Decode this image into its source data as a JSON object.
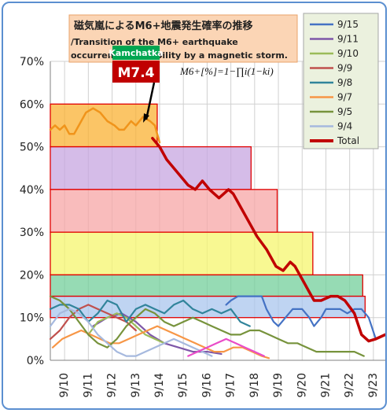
{
  "chart_data": {
    "type": "line",
    "title_jp": "磁気嵐によるM6+地震発生確率の推移",
    "title_en_line1": "/Transition of the M6+ earthquake",
    "title_en_line2": "occurrence probability by a magnetic storm.",
    "annotation": {
      "place": "Kamchatka",
      "magnitude": "M7.4"
    },
    "formula": "M6+[%]=1−∏i(1−ki)",
    "y_ticks": [
      "0%",
      "10%",
      "20%",
      "30%",
      "40%",
      "50%",
      "60%",
      "70%"
    ],
    "ylim": [
      0,
      70
    ],
    "x_dates": [
      "9/10",
      "9/11",
      "9/12",
      "9/13",
      "9/14",
      "9/15",
      "9/16",
      "9/17",
      "9/18",
      "9/19",
      "9/20",
      "9/21",
      "9/22",
      "9/23"
    ],
    "xlim": [
      9.4,
      23.5
    ],
    "grid": true,
    "legend_position": "top-right",
    "legend": [
      {
        "label": "9/15",
        "color": "#4472c4"
      },
      {
        "label": "9/11",
        "color": "#7e57a8"
      },
      {
        "label": "9/10",
        "color": "#9bbb59"
      },
      {
        "label": "9/9",
        "color": "#c0504d"
      },
      {
        "label": "9/8",
        "color": "#31849b"
      },
      {
        "label": "9/7",
        "color": "#f79646"
      },
      {
        "label": "9/5",
        "color": "#77933c"
      },
      {
        "label": "9/4",
        "color": "#a6b9de"
      },
      {
        "label": "Total",
        "color": "#c00000"
      }
    ],
    "bands": [
      {
        "x0": 9.4,
        "x1": 13.9,
        "y0": 50,
        "y1": 60,
        "color": "#f9b233"
      },
      {
        "x0": 9.4,
        "x1": 17.85,
        "y0": 40,
        "y1": 50,
        "color": "#c7a5e0"
      },
      {
        "x0": 9.4,
        "x1": 18.95,
        "y0": 30,
        "y1": 40,
        "color": "#f7a6a6"
      },
      {
        "x0": 9.4,
        "x1": 20.45,
        "y0": 20,
        "y1": 30,
        "color": "#f6f66e"
      },
      {
        "x0": 9.4,
        "x1": 22.55,
        "y0": 15,
        "y1": 20,
        "color": "#73cf9b"
      },
      {
        "x0": 9.4,
        "x1": 22.65,
        "y0": 10,
        "y1": 15,
        "color": "#a9c6ee"
      }
    ],
    "series": [
      {
        "name": "Total",
        "color": "#c00000",
        "width": 3.5,
        "x": [
          13.7,
          14.0,
          14.3,
          14.6,
          14.9,
          15.2,
          15.5,
          15.8,
          16.1,
          16.5,
          16.9,
          17.1,
          17.4,
          17.8,
          18.1,
          18.5,
          18.9,
          19.2,
          19.5,
          19.7,
          20.0,
          20.3,
          20.5,
          20.8,
          21.2,
          21.5,
          21.8,
          22.2,
          22.5,
          22.8,
          23.1,
          23.5
        ],
        "y": [
          52,
          50,
          47,
          45,
          43,
          41,
          40,
          42,
          40,
          38,
          40,
          39,
          36,
          32,
          29,
          26,
          22,
          21,
          23,
          22,
          19,
          16,
          14,
          14,
          15,
          15,
          14,
          11,
          6,
          4.5,
          5,
          6
        ]
      },
      {
        "name": "orange_over",
        "color": "#f0941b",
        "width": 2.5,
        "x": [
          9.4,
          9.6,
          9.8,
          10.0,
          10.2,
          10.4,
          10.6,
          10.9,
          11.2,
          11.5,
          11.8,
          12.1,
          12.3,
          12.5,
          12.8,
          13.0,
          13.3,
          13.6,
          13.8,
          14.0
        ],
        "y": [
          54,
          55,
          54,
          55,
          53,
          53,
          55,
          58,
          59,
          58,
          56,
          55,
          54,
          54,
          56,
          55,
          57,
          56,
          55,
          51
        ]
      },
      {
        "name": "9/15",
        "color": "#4472c4",
        "width": 2.2,
        "x": [
          16.8,
          17.0,
          17.3,
          17.6,
          18.0,
          18.3,
          18.5,
          18.8,
          19.0,
          19.3,
          19.6,
          20.0,
          20.3,
          20.5,
          20.8,
          21.0,
          21.3,
          21.6,
          21.9,
          22.2,
          22.5,
          22.8,
          23.1
        ],
        "y": [
          13,
          14,
          15,
          15,
          15,
          15,
          12,
          9,
          8,
          10,
          12,
          12,
          10,
          8,
          10,
          12,
          12,
          12,
          11,
          12,
          12,
          10,
          5
        ]
      },
      {
        "name": "9/11",
        "color": "#7e57a8",
        "width": 2.2,
        "x": [
          11.2,
          11.8,
          12.4,
          13.0,
          13.6,
          14.2,
          14.8,
          15.4,
          16.0,
          16.6
        ],
        "y": [
          8,
          10,
          11,
          9,
          6,
          4,
          3,
          2,
          2,
          1.5
        ]
      },
      {
        "name": "9/10",
        "color": "#9bbb59",
        "width": 2.2,
        "x": [
          11.0,
          11.4,
          11.8,
          12.2,
          12.6,
          13.0,
          13.4,
          13.8,
          14.2
        ],
        "y": [
          6,
          9,
          10,
          11,
          10,
          8,
          6,
          5,
          4
        ]
      },
      {
        "name": "9/9",
        "color": "#c0504d",
        "width": 2.2,
        "x": [
          9.4,
          9.8,
          10.2,
          10.6,
          11.0,
          11.4,
          11.8,
          12.2,
          12.6,
          13.0
        ],
        "y": [
          5,
          7,
          10,
          12,
          13,
          12,
          11,
          10,
          9,
          7
        ]
      },
      {
        "name": "9/8",
        "color": "#31849b",
        "width": 2.2,
        "x": [
          9.4,
          9.8,
          10.2,
          10.6,
          11.0,
          11.4,
          11.8,
          12.2,
          12.6,
          13.0,
          13.4,
          13.8,
          14.2,
          14.6,
          15.0,
          15.4,
          15.8,
          16.2,
          16.6,
          17.0,
          17.4,
          17.8
        ],
        "y": [
          12,
          13,
          13,
          12,
          9,
          11,
          14,
          13,
          9,
          12,
          13,
          12,
          11,
          13,
          14,
          12,
          11,
          12,
          11,
          12,
          9,
          8
        ]
      },
      {
        "name": "9/7",
        "color": "#f79646",
        "width": 2.2,
        "x": [
          9.5,
          9.9,
          10.3,
          10.7,
          11.1,
          11.5,
          11.9,
          12.3,
          12.7,
          13.1,
          13.5,
          13.9,
          14.3,
          14.7,
          15.1,
          15.5,
          15.9,
          16.3,
          16.7,
          17.1,
          17.5,
          17.9,
          18.3,
          18.6
        ],
        "y": [
          3,
          5,
          6,
          7,
          6,
          5,
          4,
          4,
          5,
          6,
          7,
          8,
          7,
          6,
          5,
          4,
          3,
          2,
          2,
          3,
          3,
          2,
          1,
          0.5
        ]
      },
      {
        "name": "9/5",
        "color": "#77933c",
        "width": 2.2,
        "x": [
          9.4,
          9.8,
          10.2,
          10.6,
          11.0,
          11.4,
          11.8,
          12.2,
          12.6,
          13.0,
          13.4,
          13.8,
          14.2,
          14.6,
          15.0,
          15.4,
          15.8,
          16.2,
          16.6,
          17.0,
          17.4,
          17.8,
          18.2,
          18.6,
          19.0,
          19.4,
          19.8,
          20.2,
          20.6,
          21.0,
          21.4,
          21.8,
          22.2,
          22.6
        ],
        "y": [
          15,
          14,
          12,
          9,
          6,
          4,
          3,
          5,
          8,
          10,
          12,
          11,
          9,
          8,
          9,
          10,
          9,
          8,
          7,
          6,
          6,
          7,
          7,
          6,
          5,
          4,
          4,
          3,
          2,
          2,
          2,
          2,
          2,
          1
        ]
      },
      {
        "name": "9/4",
        "color": "#a6b9de",
        "width": 2.2,
        "x": [
          9.4,
          9.8,
          10.2,
          10.6,
          11.0,
          11.4,
          11.8,
          12.2,
          12.6,
          13.0,
          13.4,
          13.8,
          14.2,
          14.6,
          15.0,
          15.4,
          15.8,
          16.2
        ],
        "y": [
          8,
          11,
          12,
          11,
          9,
          6,
          4,
          2,
          1,
          1,
          2,
          3,
          4,
          5,
          4,
          3,
          2,
          1
        ]
      },
      {
        "name": "pink",
        "color": "#e94cc8",
        "width": 2.2,
        "x": [
          15.2,
          15.6,
          16.0,
          16.4,
          16.8,
          17.2,
          17.6,
          18.0,
          18.4
        ],
        "y": [
          1,
          2,
          3,
          4,
          5,
          4,
          3,
          2,
          1
        ]
      }
    ]
  }
}
